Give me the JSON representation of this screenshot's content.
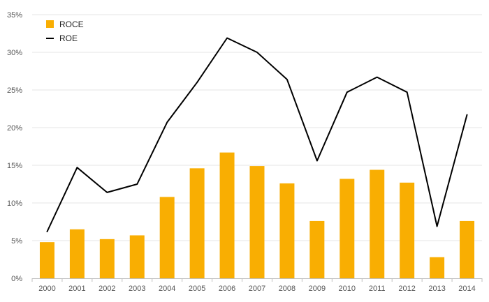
{
  "chart_data": {
    "type": "bar",
    "categories": [
      "2000",
      "2001",
      "2002",
      "2003",
      "2004",
      "2005",
      "2006",
      "2007",
      "2008",
      "2009",
      "2010",
      "2011",
      "2012",
      "2013",
      "2014"
    ],
    "series": [
      {
        "name": "ROCE",
        "type": "bar",
        "color": "#F9AE02",
        "values": [
          4.8,
          6.5,
          5.2,
          5.7,
          10.8,
          14.6,
          16.7,
          14.9,
          12.6,
          7.6,
          13.2,
          14.4,
          12.7,
          2.8,
          7.6
        ]
      },
      {
        "name": "ROE",
        "type": "line",
        "color": "#000000",
        "values": [
          6.2,
          14.7,
          11.4,
          12.5,
          20.7,
          26.0,
          31.9,
          30.0,
          26.4,
          15.6,
          24.7,
          26.7,
          24.7,
          6.9,
          21.7
        ]
      }
    ],
    "yticks": [
      "0%",
      "5%",
      "10%",
      "15%",
      "20%",
      "25%",
      "30%",
      "35%"
    ],
    "ylim": [
      0,
      35
    ],
    "grid": true,
    "legend": "top-left"
  }
}
